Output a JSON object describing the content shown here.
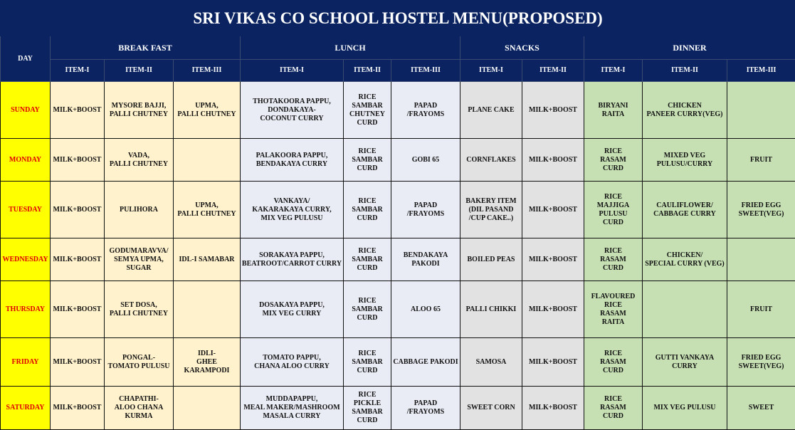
{
  "title": "SRI VIKAS CO SCHOOL HOSTEL MENU(PROPOSED)",
  "headers": {
    "day": "DAY",
    "groups": [
      "BREAK FAST",
      "LUNCH",
      "SNACKS",
      "DINNER"
    ],
    "breakfast": [
      "ITEM-I",
      "ITEM-II",
      "ITEM-III"
    ],
    "lunch": [
      "ITEM-I",
      "ITEM-II",
      "ITEM-III"
    ],
    "snacks": [
      "ITEM-I",
      "ITEM-II"
    ],
    "dinner": [
      "ITEM-I",
      "ITEM-II",
      "ITEM-III"
    ]
  },
  "colors": {
    "header": "#0b2461",
    "day_bg": "#ffff00",
    "day_text": "#e00000",
    "breakfast": "#fff2cc",
    "lunch": "#e9ecf5",
    "snacks": "#e2e2e2",
    "dinner": "#c6e0b4"
  },
  "days": [
    {
      "day": "SUNDAY",
      "breakfast": [
        "MILK+BOOST",
        "MYSORE BAJJI,\nPALLI CHUTNEY",
        "UPMA,\nPALLI CHUTNEY"
      ],
      "lunch": [
        "THOTAKOORA PAPPU,\nDONDAKAYA-\nCOCONUT CURRY",
        "RICE\nSAMBAR\nCHUTNEY\nCURD",
        "PAPAD\n/FRAYOMS"
      ],
      "snacks": [
        "PLANE CAKE",
        "MILK+BOOST"
      ],
      "dinner": [
        "BIRYANI\nRAITA",
        "CHICKEN\nPANEER CURRY(VEG)",
        ""
      ]
    },
    {
      "day": "MONDAY",
      "breakfast": [
        "MILK+BOOST",
        "VADA,\nPALLI CHUTNEY",
        ""
      ],
      "lunch": [
        "PALAKOORA PAPPU,\nBENDAKAYA CURRY",
        "RICE\nSAMBAR\nCURD",
        "GOBI 65"
      ],
      "snacks": [
        "CORNFLAKES",
        "MILK+BOOST"
      ],
      "dinner": [
        "RICE\nRASAM\nCURD",
        "MIXED VEG\nPULUSU/CURRY",
        "FRUIT"
      ]
    },
    {
      "day": "TUESDAY",
      "breakfast": [
        "MILK+BOOST",
        "PULIHORA",
        "UPMA,\nPALLI CHUTNEY"
      ],
      "lunch": [
        "VANKAYA/\nKAKARAKAYA CURRY,\nMIX VEG PULUSU",
        "RICE\nSAMBAR\nCURD",
        "PAPAD\n/FRAYOMS"
      ],
      "snacks": [
        "BAKERY ITEM\n(DIL PASAND\n/CUP CAKE..)",
        "MILK+BOOST"
      ],
      "dinner": [
        "RICE\nMAJJIGA\nPULUSU\nCURD",
        "CAULIFLOWER/\nCABBAGE CURRY",
        "FRIED EGG\nSWEET(VEG)"
      ]
    },
    {
      "day": "WEDNESDAY",
      "breakfast": [
        "MILK+BOOST",
        "GODUMARAVVA/\nSEMYA UPMA,\nSUGAR",
        "IDL-I SAMABAR"
      ],
      "lunch": [
        "SORAKAYA PAPPU,\nBEATROOT/CARROT CURRY",
        "RICE\nSAMBAR\nCURD",
        "BENDAKAYA\nPAKODI"
      ],
      "snacks": [
        "BOILED PEAS",
        "MILK+BOOST"
      ],
      "dinner": [
        "RICE\nRASAM\nCURD",
        "CHICKEN/\nSPECIAL CURRY (VEG)",
        ""
      ]
    },
    {
      "day": "THURSDAY",
      "breakfast": [
        "MILK+BOOST",
        "SET DOSA,\nPALLI CHUTNEY",
        ""
      ],
      "lunch": [
        "DOSAKAYA PAPPU,\nMIX VEG CURRY",
        "RICE\nSAMBAR\nCURD",
        "ALOO 65"
      ],
      "snacks": [
        "PALLI CHIKKI",
        "MILK+BOOST"
      ],
      "dinner": [
        "FLAVOURED\nRICE\nRASAM\nRAITA",
        "",
        "FRUIT"
      ]
    },
    {
      "day": "FRIDAY",
      "breakfast": [
        "MILK+BOOST",
        "PONGAL-\nTOMATO PULUSU",
        "IDLI-\nGHEE KARAMPODI"
      ],
      "lunch": [
        "TOMATO PAPPU,\nCHANA ALOO CURRY",
        "RICE\nSAMBAR\nCURD",
        "CABBAGE PAKODI"
      ],
      "snacks": [
        "SAMOSA",
        "MILK+BOOST"
      ],
      "dinner": [
        "RICE\nRASAM\nCURD",
        "GUTTI VANKAYA\nCURRY",
        "FRIED EGG\nSWEET(VEG)"
      ]
    },
    {
      "day": "SATURDAY",
      "breakfast": [
        "MILK+BOOST",
        "CHAPATHI-\nALOO CHANA\nKURMA",
        ""
      ],
      "lunch": [
        "MUDDAPAPPU,\nMEAL MAKER/MASHROOM\nMASALA CURRY",
        "RICE\nPICKLE\nSAMBAR\nCURD",
        "PAPAD\n/FRAYOMS"
      ],
      "snacks": [
        "SWEET CORN",
        "MILK+BOOST"
      ],
      "dinner": [
        "RICE\nRASAM\nCURD",
        "MIX VEG PULUSU",
        "SWEET"
      ]
    }
  ]
}
